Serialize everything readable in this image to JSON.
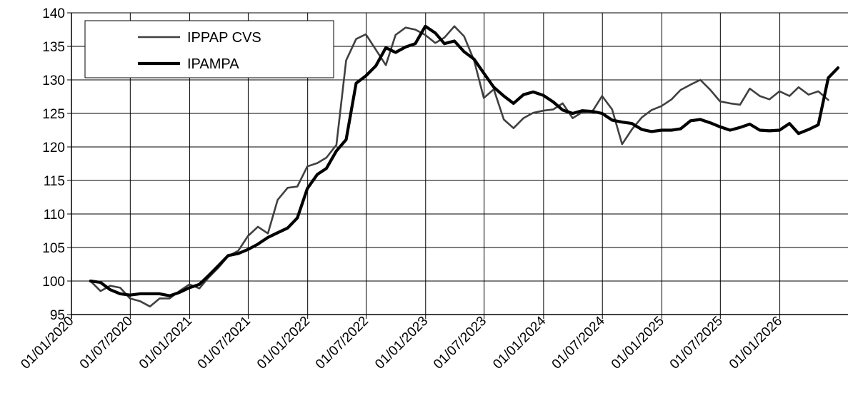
{
  "chart_data": {
    "type": "line",
    "title": "",
    "xlabel": "",
    "ylabel": "",
    "ylim": [
      95,
      140
    ],
    "yticks": [
      95,
      100,
      105,
      110,
      115,
      120,
      125,
      130,
      135,
      140
    ],
    "xlim": [
      "2020-01-01",
      "2026-07-31"
    ],
    "xtick_labels": [
      "01/01/2020",
      "01/07/2020",
      "01/01/2021",
      "01/07/2021",
      "01/01/2022",
      "01/07/2022",
      "01/01/2023",
      "01/07/2023",
      "01/01/2024",
      "01/07/2024",
      "01/01/2025",
      "01/07/2025",
      "01/01/2026"
    ],
    "grid": true,
    "legend_position": "top-left",
    "series": [
      {
        "name": "IPPAP CVS",
        "color": "#404040",
        "points": [
          [
            "2020-02",
            100.0
          ],
          [
            "2020-03",
            98.5
          ],
          [
            "2020-04",
            99.3
          ],
          [
            "2020-05",
            99.0
          ],
          [
            "2020-06",
            97.4
          ],
          [
            "2020-07",
            97.0
          ],
          [
            "2020-08",
            96.2
          ],
          [
            "2020-09",
            97.4
          ],
          [
            "2020-10",
            97.4
          ],
          [
            "2020-11",
            98.5
          ],
          [
            "2020-12",
            99.5
          ],
          [
            "2021-01",
            98.9
          ],
          [
            "2021-02",
            100.5
          ],
          [
            "2021-03",
            102.0
          ],
          [
            "2021-04",
            103.7
          ],
          [
            "2021-05",
            104.5
          ],
          [
            "2021-06",
            106.7
          ],
          [
            "2021-07",
            108.1
          ],
          [
            "2021-08",
            107.1
          ],
          [
            "2021-09",
            112.1
          ],
          [
            "2021-10",
            113.9
          ],
          [
            "2021-11",
            114.1
          ],
          [
            "2021-12",
            117.1
          ],
          [
            "2022-01",
            117.6
          ],
          [
            "2022-02",
            118.4
          ],
          [
            "2022-03",
            120.3
          ],
          [
            "2022-04",
            132.9
          ],
          [
            "2022-05",
            136.1
          ],
          [
            "2022-06",
            136.8
          ],
          [
            "2022-07",
            134.5
          ],
          [
            "2022-08",
            132.2
          ],
          [
            "2022-09",
            136.7
          ],
          [
            "2022-10",
            137.8
          ],
          [
            "2022-11",
            137.5
          ],
          [
            "2022-12",
            136.7
          ],
          [
            "2023-01",
            135.5
          ],
          [
            "2023-02",
            136.3
          ],
          [
            "2023-03",
            138.0
          ],
          [
            "2023-04",
            136.5
          ],
          [
            "2023-05",
            132.9
          ],
          [
            "2023-06",
            127.3
          ],
          [
            "2023-07",
            128.6
          ],
          [
            "2023-08",
            124.1
          ],
          [
            "2023-09",
            122.8
          ],
          [
            "2023-10",
            124.3
          ],
          [
            "2023-11",
            125.1
          ],
          [
            "2023-12",
            125.4
          ],
          [
            "2024-01",
            125.6
          ],
          [
            "2024-02",
            126.5
          ],
          [
            "2024-03",
            124.3
          ],
          [
            "2024-04",
            125.2
          ],
          [
            "2024-05",
            125.3
          ],
          [
            "2024-06",
            127.6
          ],
          [
            "2024-07",
            125.6
          ],
          [
            "2024-08",
            120.4
          ],
          [
            "2024-09",
            122.6
          ],
          [
            "2024-10",
            124.4
          ],
          [
            "2024-11",
            125.5
          ],
          [
            "2024-12",
            126.1
          ],
          [
            "2025-01",
            127.1
          ],
          [
            "2025-02",
            128.5
          ],
          [
            "2025-03",
            129.3
          ],
          [
            "2025-04",
            130.0
          ],
          [
            "2025-05",
            128.5
          ],
          [
            "2025-06",
            126.8
          ],
          [
            "2025-07",
            126.5
          ],
          [
            "2025-08",
            126.3
          ],
          [
            "2025-09",
            128.7
          ],
          [
            "2025-10",
            127.6
          ],
          [
            "2025-11",
            127.1
          ],
          [
            "2025-12",
            128.3
          ],
          [
            "2026-01",
            127.6
          ],
          [
            "2026-02",
            128.9
          ],
          [
            "2026-03",
            127.8
          ],
          [
            "2026-04",
            128.3
          ],
          [
            "2026-05",
            127.0
          ]
        ]
      },
      {
        "name": "IPAMPA",
        "color": "#000000",
        "points": [
          [
            "2020-02",
            100.0
          ],
          [
            "2020-03",
            99.8
          ],
          [
            "2020-04",
            98.7
          ],
          [
            "2020-05",
            98.1
          ],
          [
            "2020-06",
            97.9
          ],
          [
            "2020-07",
            98.1
          ],
          [
            "2020-08",
            98.1
          ],
          [
            "2020-09",
            98.1
          ],
          [
            "2020-10",
            97.8
          ],
          [
            "2020-11",
            98.3
          ],
          [
            "2020-12",
            99.0
          ],
          [
            "2021-01",
            99.5
          ],
          [
            "2021-02",
            100.8
          ],
          [
            "2021-03",
            102.3
          ],
          [
            "2021-04",
            103.8
          ],
          [
            "2021-05",
            104.1
          ],
          [
            "2021-06",
            104.7
          ],
          [
            "2021-07",
            105.5
          ],
          [
            "2021-08",
            106.5
          ],
          [
            "2021-09",
            107.2
          ],
          [
            "2021-10",
            107.9
          ],
          [
            "2021-11",
            109.4
          ],
          [
            "2021-12",
            113.8
          ],
          [
            "2022-01",
            115.9
          ],
          [
            "2022-02",
            116.8
          ],
          [
            "2022-03",
            119.4
          ],
          [
            "2022-04",
            121.1
          ],
          [
            "2022-05",
            129.5
          ],
          [
            "2022-06",
            130.6
          ],
          [
            "2022-07",
            132.1
          ],
          [
            "2022-08",
            134.8
          ],
          [
            "2022-09",
            134.1
          ],
          [
            "2022-10",
            134.9
          ],
          [
            "2022-11",
            135.4
          ],
          [
            "2022-12",
            138.0
          ],
          [
            "2023-01",
            137.0
          ],
          [
            "2023-02",
            135.4
          ],
          [
            "2023-03",
            135.8
          ],
          [
            "2023-04",
            134.2
          ],
          [
            "2023-05",
            133.1
          ],
          [
            "2023-06",
            131.0
          ],
          [
            "2023-07",
            128.9
          ],
          [
            "2023-08",
            127.6
          ],
          [
            "2023-09",
            126.5
          ],
          [
            "2023-10",
            127.8
          ],
          [
            "2023-11",
            128.2
          ],
          [
            "2023-12",
            127.7
          ],
          [
            "2024-01",
            126.7
          ],
          [
            "2024-02",
            125.5
          ],
          [
            "2024-03",
            125.0
          ],
          [
            "2024-04",
            125.4
          ],
          [
            "2024-05",
            125.3
          ],
          [
            "2024-06",
            125.0
          ],
          [
            "2024-07",
            124.0
          ],
          [
            "2024-08",
            123.7
          ],
          [
            "2024-09",
            123.5
          ],
          [
            "2024-10",
            122.6
          ],
          [
            "2024-11",
            122.3
          ],
          [
            "2024-12",
            122.5
          ],
          [
            "2025-01",
            122.5
          ],
          [
            "2025-02",
            122.7
          ],
          [
            "2025-03",
            123.9
          ],
          [
            "2025-04",
            124.1
          ],
          [
            "2025-05",
            123.6
          ],
          [
            "2025-06",
            123.0
          ],
          [
            "2025-07",
            122.5
          ],
          [
            "2025-08",
            122.9
          ],
          [
            "2025-09",
            123.4
          ],
          [
            "2025-10",
            122.5
          ],
          [
            "2025-11",
            122.4
          ],
          [
            "2025-12",
            122.5
          ],
          [
            "2026-01",
            123.5
          ],
          [
            "2026-02",
            122.0
          ],
          [
            "2026-03",
            122.6
          ],
          [
            "2026-04",
            123.3
          ],
          [
            "2026-05",
            130.3
          ],
          [
            "2026-06",
            131.8
          ]
        ]
      }
    ]
  }
}
